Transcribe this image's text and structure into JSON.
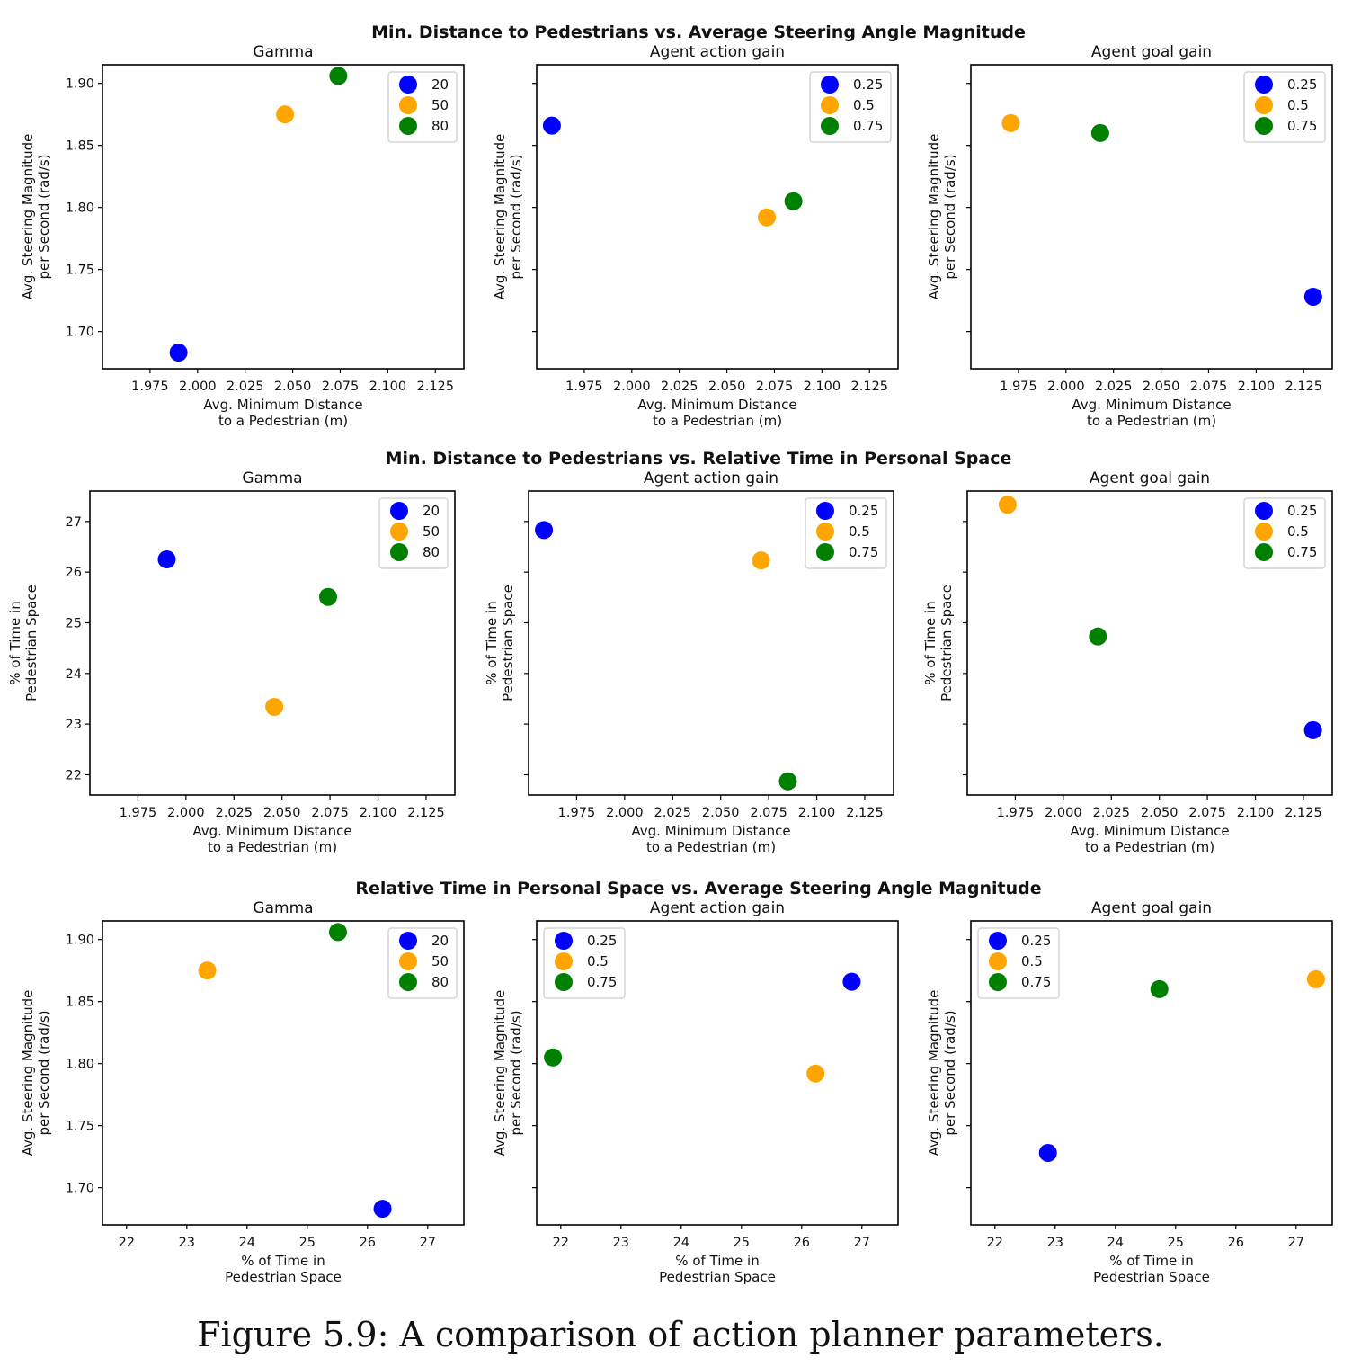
{
  "caption": "Figure 5.9: A comparison of action planner parameters.",
  "colors": {
    "blue": "#0000ff",
    "orange": "#ffa500",
    "green": "#008000"
  },
  "rows": [
    {
      "title": "Min. Distance to Pedestrians vs. Average Steering Angle Magnitude"
    },
    {
      "title": "Min. Distance to Pedestrians vs. Relative Time in Personal Space"
    },
    {
      "title": "Relative Time in Personal Space vs. Average Steering Angle Magnitude"
    }
  ],
  "chart_data": [
    {
      "type": "scatter",
      "title": "Gamma",
      "xlabel": [
        "Avg. Minimum Distance",
        "to a Pedestrian (m)"
      ],
      "ylabel": [
        "Avg. Steering Magnitude",
        "per Second (rad/s)"
      ],
      "xlim": [
        1.95,
        2.14
      ],
      "ylim": [
        1.67,
        1.915
      ],
      "xticks": [
        1.975,
        2.0,
        2.025,
        2.05,
        2.075,
        2.1,
        2.125
      ],
      "xtick_labels": [
        "1.975",
        "2.000",
        "2.025",
        "2.050",
        "2.075",
        "2.100",
        "2.125"
      ],
      "yticks": [
        1.7,
        1.75,
        1.8,
        1.85,
        1.9
      ],
      "ytick_labels": [
        "1.70",
        "1.75",
        "1.80",
        "1.85",
        "1.90"
      ],
      "legend": "top-right",
      "series": [
        {
          "name": "20",
          "color": "blue",
          "x": [
            1.99
          ],
          "y": [
            1.683
          ]
        },
        {
          "name": "50",
          "color": "orange",
          "x": [
            2.046
          ],
          "y": [
            1.875
          ]
        },
        {
          "name": "80",
          "color": "green",
          "x": [
            2.074
          ],
          "y": [
            1.906
          ]
        }
      ]
    },
    {
      "type": "scatter",
      "title": "Agent action gain",
      "xlabel": [
        "Avg. Minimum Distance",
        "to a Pedestrian (m)"
      ],
      "ylabel": [
        "Avg. Steering Magnitude",
        "per Second (rad/s)"
      ],
      "xlim": [
        1.95,
        2.14
      ],
      "ylim": [
        1.67,
        1.915
      ],
      "xticks": [
        1.975,
        2.0,
        2.025,
        2.05,
        2.075,
        2.1,
        2.125
      ],
      "xtick_labels": [
        "1.975",
        "2.000",
        "2.025",
        "2.050",
        "2.075",
        "2.100",
        "2.125"
      ],
      "yticks": [
        1.7,
        1.75,
        1.8,
        1.85,
        1.9
      ],
      "ytick_labels": [],
      "legend": "top-right",
      "series": [
        {
          "name": "0.25",
          "color": "blue",
          "x": [
            1.958
          ],
          "y": [
            1.866
          ]
        },
        {
          "name": "0.5",
          "color": "orange",
          "x": [
            2.071
          ],
          "y": [
            1.792
          ]
        },
        {
          "name": "0.75",
          "color": "green",
          "x": [
            2.085
          ],
          "y": [
            1.805
          ]
        }
      ]
    },
    {
      "type": "scatter",
      "title": "Agent goal gain",
      "xlabel": [
        "Avg. Minimum Distance",
        "to a Pedestrian (m)"
      ],
      "ylabel": [
        "Avg. Steering Magnitude",
        "per Second (rad/s)"
      ],
      "xlim": [
        1.95,
        2.14
      ],
      "ylim": [
        1.67,
        1.915
      ],
      "xticks": [
        1.975,
        2.0,
        2.025,
        2.05,
        2.075,
        2.1,
        2.125
      ],
      "xtick_labels": [
        "1.975",
        "2.000",
        "2.025",
        "2.050",
        "2.075",
        "2.100",
        "2.125"
      ],
      "yticks": [
        1.7,
        1.75,
        1.8,
        1.85,
        1.9
      ],
      "ytick_labels": [],
      "legend": "top-right",
      "series": [
        {
          "name": "0.25",
          "color": "blue",
          "x": [
            2.13
          ],
          "y": [
            1.728
          ]
        },
        {
          "name": "0.5",
          "color": "orange",
          "x": [
            1.971
          ],
          "y": [
            1.868
          ]
        },
        {
          "name": "0.75",
          "color": "green",
          "x": [
            2.018
          ],
          "y": [
            1.86
          ]
        }
      ]
    },
    {
      "type": "scatter",
      "title": "Gamma",
      "xlabel": [
        "Avg. Minimum Distance",
        "to a Pedestrian (m)"
      ],
      "ylabel": [
        "% of Time in",
        "Pedestrian Space"
      ],
      "xlim": [
        1.95,
        2.14
      ],
      "ylim": [
        21.6,
        27.6
      ],
      "xticks": [
        1.975,
        2.0,
        2.025,
        2.05,
        2.075,
        2.1,
        2.125
      ],
      "xtick_labels": [
        "1.975",
        "2.000",
        "2.025",
        "2.050",
        "2.075",
        "2.100",
        "2.125"
      ],
      "yticks": [
        22,
        23,
        24,
        25,
        26,
        27
      ],
      "ytick_labels": [
        "22",
        "23",
        "24",
        "25",
        "26",
        "27"
      ],
      "legend": "top-right",
      "series": [
        {
          "name": "20",
          "color": "blue",
          "x": [
            1.99
          ],
          "y": [
            26.25
          ]
        },
        {
          "name": "50",
          "color": "orange",
          "x": [
            2.046
          ],
          "y": [
            23.34
          ]
        },
        {
          "name": "80",
          "color": "green",
          "x": [
            2.074
          ],
          "y": [
            25.51
          ]
        }
      ]
    },
    {
      "type": "scatter",
      "title": "Agent action gain",
      "xlabel": [
        "Avg. Minimum Distance",
        "to a Pedestrian (m)"
      ],
      "ylabel": [
        "% of Time in",
        "Pedestrian Space"
      ],
      "xlim": [
        1.95,
        2.14
      ],
      "ylim": [
        21.6,
        27.6
      ],
      "xticks": [
        1.975,
        2.0,
        2.025,
        2.05,
        2.075,
        2.1,
        2.125
      ],
      "xtick_labels": [
        "1.975",
        "2.000",
        "2.025",
        "2.050",
        "2.075",
        "2.100",
        "2.125"
      ],
      "yticks": [
        22,
        23,
        24,
        25,
        26,
        27
      ],
      "ytick_labels": [],
      "legend": "top-right",
      "series": [
        {
          "name": "0.25",
          "color": "blue",
          "x": [
            1.958
          ],
          "y": [
            26.83
          ]
        },
        {
          "name": "0.5",
          "color": "orange",
          "x": [
            2.071
          ],
          "y": [
            26.23
          ]
        },
        {
          "name": "0.75",
          "color": "green",
          "x": [
            2.085
          ],
          "y": [
            21.87
          ]
        }
      ]
    },
    {
      "type": "scatter",
      "title": "Agent goal gain",
      "xlabel": [
        "Avg. Minimum Distance",
        "to a Pedestrian (m)"
      ],
      "ylabel": [
        "% of Time in",
        "Pedestrian Space"
      ],
      "xlim": [
        1.95,
        2.14
      ],
      "ylim": [
        21.6,
        27.6
      ],
      "xticks": [
        1.975,
        2.0,
        2.025,
        2.05,
        2.075,
        2.1,
        2.125
      ],
      "xtick_labels": [
        "1.975",
        "2.000",
        "2.025",
        "2.050",
        "2.075",
        "2.100",
        "2.125"
      ],
      "yticks": [
        22,
        23,
        24,
        25,
        26,
        27
      ],
      "ytick_labels": [],
      "legend": "top-right",
      "series": [
        {
          "name": "0.25",
          "color": "blue",
          "x": [
            2.13
          ],
          "y": [
            22.88
          ]
        },
        {
          "name": "0.5",
          "color": "orange",
          "x": [
            1.971
          ],
          "y": [
            27.33
          ]
        },
        {
          "name": "0.75",
          "color": "green",
          "x": [
            2.018
          ],
          "y": [
            24.73
          ]
        }
      ]
    },
    {
      "type": "scatter",
      "title": "Gamma",
      "xlabel": [
        "% of Time in",
        "Pedestrian Space"
      ],
      "ylabel": [
        "Avg. Steering Magnitude",
        "per Second (rad/s)"
      ],
      "xlim": [
        21.6,
        27.6
      ],
      "ylim": [
        1.67,
        1.915
      ],
      "xticks": [
        22,
        23,
        24,
        25,
        26,
        27
      ],
      "xtick_labels": [
        "22",
        "23",
        "24",
        "25",
        "26",
        "27"
      ],
      "yticks": [
        1.7,
        1.75,
        1.8,
        1.85,
        1.9
      ],
      "ytick_labels": [
        "1.70",
        "1.75",
        "1.80",
        "1.85",
        "1.90"
      ],
      "legend": "top-right",
      "series": [
        {
          "name": "20",
          "color": "blue",
          "x": [
            26.25
          ],
          "y": [
            1.683
          ]
        },
        {
          "name": "50",
          "color": "orange",
          "x": [
            23.34
          ],
          "y": [
            1.875
          ]
        },
        {
          "name": "80",
          "color": "green",
          "x": [
            25.51
          ],
          "y": [
            1.906
          ]
        }
      ]
    },
    {
      "type": "scatter",
      "title": "Agent action gain",
      "xlabel": [
        "% of Time in",
        "Pedestrian Space"
      ],
      "ylabel": [
        "Avg. Steering Magnitude",
        "per Second (rad/s)"
      ],
      "xlim": [
        21.6,
        27.6
      ],
      "ylim": [
        1.67,
        1.915
      ],
      "xticks": [
        22,
        23,
        24,
        25,
        26,
        27
      ],
      "xtick_labels": [
        "22",
        "23",
        "24",
        "25",
        "26",
        "27"
      ],
      "yticks": [
        1.7,
        1.75,
        1.8,
        1.85,
        1.9
      ],
      "ytick_labels": [],
      "legend": "top-left",
      "series": [
        {
          "name": "0.25",
          "color": "blue",
          "x": [
            26.83
          ],
          "y": [
            1.866
          ]
        },
        {
          "name": "0.5",
          "color": "orange",
          "x": [
            26.23
          ],
          "y": [
            1.792
          ]
        },
        {
          "name": "0.75",
          "color": "green",
          "x": [
            21.87
          ],
          "y": [
            1.805
          ]
        }
      ]
    },
    {
      "type": "scatter",
      "title": "Agent goal gain",
      "xlabel": [
        "% of Time in",
        "Pedestrian Space"
      ],
      "ylabel": [
        "Avg. Steering Magnitude",
        "per Second (rad/s)"
      ],
      "xlim": [
        21.6,
        27.6
      ],
      "ylim": [
        1.67,
        1.915
      ],
      "xticks": [
        22,
        23,
        24,
        25,
        26,
        27
      ],
      "xtick_labels": [
        "22",
        "23",
        "24",
        "25",
        "26",
        "27"
      ],
      "yticks": [
        1.7,
        1.75,
        1.8,
        1.85,
        1.9
      ],
      "ytick_labels": [],
      "legend": "top-left",
      "series": [
        {
          "name": "0.25",
          "color": "blue",
          "x": [
            22.88
          ],
          "y": [
            1.728
          ]
        },
        {
          "name": "0.5",
          "color": "orange",
          "x": [
            27.33
          ],
          "y": [
            1.868
          ]
        },
        {
          "name": "0.75",
          "color": "green",
          "x": [
            24.73
          ],
          "y": [
            1.86
          ]
        }
      ]
    }
  ]
}
